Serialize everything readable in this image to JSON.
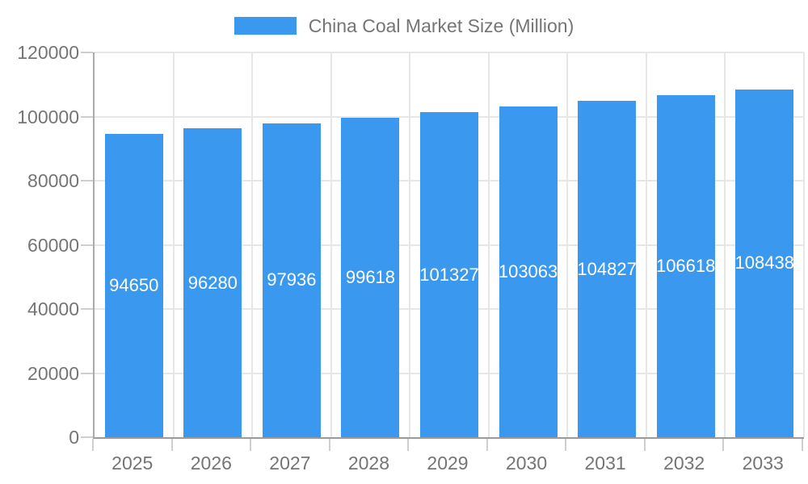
{
  "legend": {
    "label": "China Coal Market Size (Million)"
  },
  "colors": {
    "bar": "#3b98ef",
    "bar_label": "#ffffff",
    "grid": "#e7e7e7",
    "tick": "#cfcfcf",
    "axis_left": "#ababab",
    "axis_bottom": "#9b9b9b",
    "text": "#757575"
  },
  "chart_data": {
    "type": "bar",
    "title": "China Coal Market Size (Million)",
    "categories": [
      "2025",
      "2026",
      "2027",
      "2028",
      "2029",
      "2030",
      "2031",
      "2032",
      "2033"
    ],
    "values": [
      94650,
      96280,
      97936,
      99618,
      101327,
      103063,
      104827,
      106618,
      108438
    ],
    "value_labels": [
      "94650",
      "96280",
      "97936",
      "99618",
      "101327",
      "103063",
      "104827",
      "106618",
      "108438"
    ],
    "xlabel": "",
    "ylabel": "",
    "ylim": [
      0,
      120000
    ],
    "y_ticks": [
      0,
      20000,
      40000,
      60000,
      80000,
      100000,
      120000
    ],
    "grid": true,
    "legend_position": "top",
    "bar_labels_position": "inside-center"
  }
}
